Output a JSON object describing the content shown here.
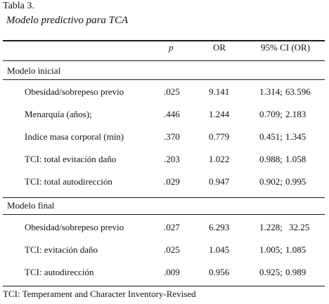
{
  "caption": {
    "number": "Tabla 3.",
    "title": "Modelo predictivo para TCA"
  },
  "headers": {
    "p": "p",
    "or": "OR",
    "ci": "95% CI (OR)"
  },
  "sections": [
    {
      "title": "Modelo inicial",
      "rows": [
        {
          "label": "Obesidad/sobrepeso previo",
          "p": ".025",
          "or": "9.141",
          "ci_low": "1.314;",
          "ci_high": "63.596"
        },
        {
          "label": "Menarquía (años);",
          "p": ".446",
          "or": "1.244",
          "ci_low": "0.709;",
          "ci_high": "2.183"
        },
        {
          "label": "Indice masa corporal (min)",
          "p": ".370",
          "or": "0.779",
          "ci_low": "0.451;",
          "ci_high": "1.345"
        },
        {
          "label": "TCI: total evitación daño",
          "p": ".203",
          "or": "1.022",
          "ci_low": "0.988;",
          "ci_high": "1.058"
        },
        {
          "label": "TCI: total autodirección",
          "p": ".029",
          "or": "0.947",
          "ci_low": "0.902;",
          "ci_high": "0.995"
        }
      ]
    },
    {
      "title": "Modelo final",
      "rows": [
        {
          "label": "Obesidad/sobrepeso previo",
          "p": ".027",
          "or": "6.293",
          "ci_low": "1.228;",
          "ci_high": "32.25"
        },
        {
          "label": "TCI: evitación daño",
          "p": ".025",
          "or": "1.045",
          "ci_low": "1.005;",
          "ci_high": "1.085"
        },
        {
          "label": "TCI: autodirección",
          "p": ".009",
          "or": "0.956",
          "ci_low": "0.925;",
          "ci_high": "0.989"
        }
      ]
    }
  ],
  "footnote": "TCI: Temperament and Character Inventory-Revised"
}
